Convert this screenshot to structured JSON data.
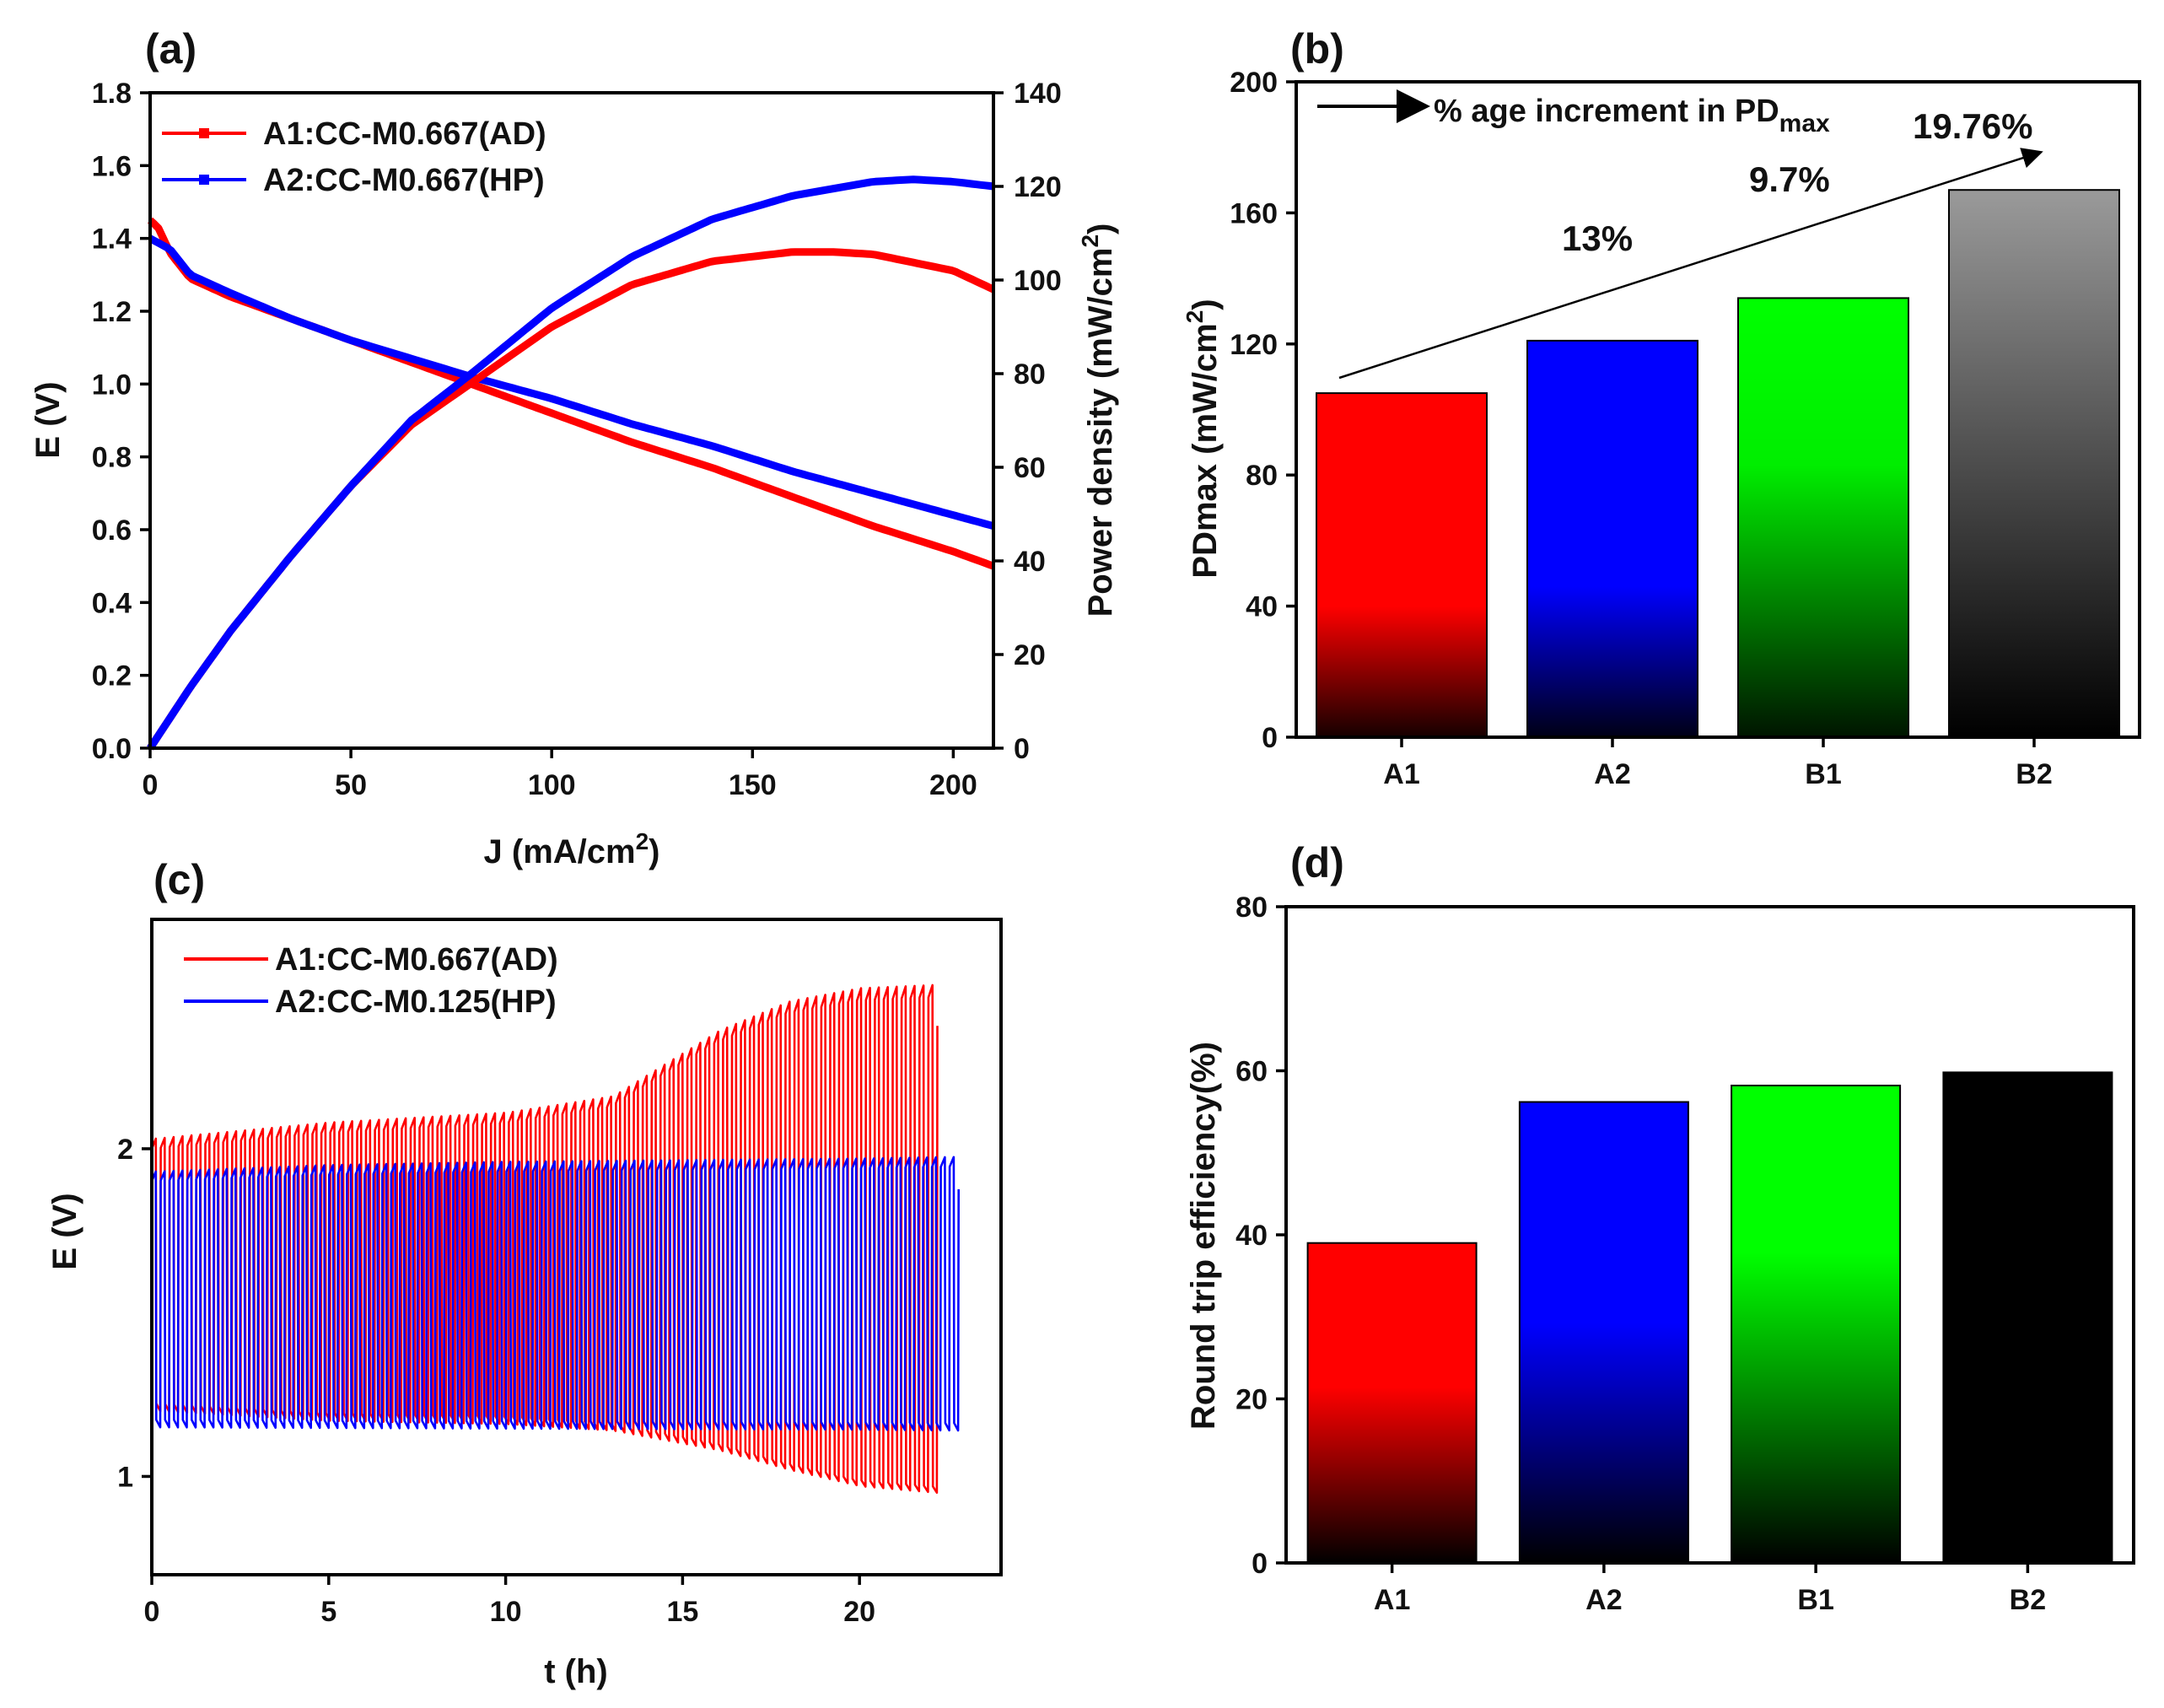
{
  "panels": {
    "a": {
      "label": "(a)"
    },
    "b": {
      "label": "(b)"
    },
    "c": {
      "label": "(c)"
    },
    "d": {
      "label": "(d)"
    }
  },
  "chart_data": [
    {
      "panel": "a",
      "type": "line",
      "xlabel": "J (mA/cm2)",
      "xlabel_main": "J (mA/cm",
      "xlabel_sup": "2",
      "xlabel_end": ")",
      "ylabel": "E (V)",
      "y2label": "Power density (mW/cm2)",
      "y2label_main": "Power density (mW/cm",
      "y2label_sup": "2",
      "y2label_end": ")",
      "xlim": [
        0,
        210
      ],
      "ylim": [
        0,
        1.8
      ],
      "y2lim": [
        0,
        140
      ],
      "xticks": [
        0,
        50,
        100,
        150,
        200
      ],
      "xtick_labels": [
        "0",
        "50",
        "100",
        "150",
        "200"
      ],
      "yticks": [
        0,
        0.2,
        0.4,
        0.6,
        0.8,
        1.0,
        1.2,
        1.4,
        1.6,
        1.8
      ],
      "ytick_labels": [
        "0.0",
        "0.2",
        "0.4",
        "0.6",
        "0.8",
        "1.0",
        "1.2",
        "1.4",
        "1.6",
        "1.8"
      ],
      "y2ticks": [
        0,
        20,
        40,
        60,
        80,
        100,
        120,
        140
      ],
      "y2tick_labels": [
        "0",
        "20",
        "40",
        "60",
        "80",
        "100",
        "120",
        "140"
      ],
      "legend": [
        "A1:CC-M0.667(AD)",
        "A2:CC-M0.667(HP)"
      ],
      "series": [
        {
          "name": "A1:CC-M0.667(AD)",
          "color": "#ff0000",
          "axis": "left",
          "x": [
            0,
            2,
            5,
            10,
            20,
            35,
            50,
            65,
            80,
            100,
            120,
            140,
            160,
            180,
            200,
            210
          ],
          "y": [
            1.45,
            1.43,
            1.36,
            1.29,
            1.24,
            1.18,
            1.12,
            1.06,
            1.0,
            0.92,
            0.84,
            0.77,
            0.69,
            0.61,
            0.54,
            0.5
          ]
        },
        {
          "name": "A2:CC-M0.667(HP)",
          "color": "#0000ff",
          "axis": "left",
          "x": [
            0,
            5,
            10,
            20,
            35,
            50,
            65,
            80,
            100,
            120,
            140,
            160,
            180,
            200,
            210
          ],
          "y": [
            1.4,
            1.37,
            1.3,
            1.25,
            1.18,
            1.12,
            1.07,
            1.02,
            0.96,
            0.89,
            0.83,
            0.76,
            0.7,
            0.64,
            0.61
          ]
        },
        {
          "name": "A1:CC-M0.667(AD) power",
          "color": "#ff0000",
          "axis": "right",
          "x": [
            0,
            10,
            20,
            35,
            50,
            65,
            80,
            100,
            120,
            140,
            160,
            170,
            180,
            200,
            210
          ],
          "y": [
            0,
            13,
            25,
            41,
            56,
            69,
            78,
            90,
            99,
            104,
            106,
            106,
            105.5,
            102,
            98
          ]
        },
        {
          "name": "A2:CC-M0.667(HP) power",
          "color": "#0000ff",
          "axis": "right",
          "x": [
            0,
            10,
            20,
            35,
            50,
            65,
            80,
            100,
            120,
            140,
            160,
            180,
            190,
            200,
            210
          ],
          "y": [
            0,
            13,
            25,
            41,
            56,
            70,
            80,
            94,
            105,
            113,
            118,
            121,
            121.5,
            121,
            120
          ]
        }
      ]
    },
    {
      "panel": "b",
      "type": "bar",
      "ylabel": "PDmax (mW/cm2)",
      "ylabel_main": "PDmax (mW/cm",
      "ylabel_sup": "2",
      "ylabel_end": ")",
      "ylim": [
        0,
        200
      ],
      "yticks": [
        0,
        40,
        80,
        120,
        160,
        200
      ],
      "ytick_labels": [
        "0",
        "40",
        "80",
        "120",
        "160",
        "200"
      ],
      "categories": [
        "A1",
        "A2",
        "B1",
        "B2"
      ],
      "values": [
        105,
        121,
        134,
        167
      ],
      "colors": [
        "#ff0000",
        "#0000ff",
        "#00ff00",
        "#8c8c8c"
      ],
      "annotations": {
        "legend_text": "% age increment in PD",
        "legend_sub": "max",
        "increments": [
          "13%",
          "9.7%",
          "19.76%"
        ]
      }
    },
    {
      "panel": "c",
      "type": "line",
      "xlabel": "t (h)",
      "ylabel": "E (V)",
      "xlim": [
        0,
        24
      ],
      "ylim": [
        0.7,
        2.7
      ],
      "xticks": [
        0,
        5,
        10,
        15,
        20
      ],
      "xtick_labels": [
        "0",
        "5",
        "10",
        "15",
        "20"
      ],
      "yticks": [
        1,
        2
      ],
      "ytick_labels": [
        "1",
        "2"
      ],
      "legend": [
        "A1:CC-M0.667(AD)",
        "A2:CC-M0.125(HP)"
      ],
      "series": [
        {
          "name": "A1:CC-M0.667(AD)",
          "color": "#ff0000",
          "cycles": 88,
          "t_end": 22.2,
          "charge_t": [
            0,
            5,
            10,
            13,
            16,
            18,
            20,
            22.2
          ],
          "charge_v": [
            2.03,
            2.08,
            2.11,
            2.16,
            2.36,
            2.45,
            2.49,
            2.5
          ],
          "discharge_t": [
            0,
            5,
            10,
            13,
            16,
            18,
            20,
            22.2
          ],
          "discharge_v": [
            1.2,
            1.17,
            1.16,
            1.14,
            1.08,
            1.02,
            0.97,
            0.95
          ]
        },
        {
          "name": "A2:CC-M0.125(HP)",
          "color": "#0000ff",
          "cycles": 91,
          "t_end": 22.8,
          "charge_t": [
            0,
            5,
            10,
            15,
            20,
            22.8
          ],
          "charge_v": [
            1.93,
            1.95,
            1.96,
            1.965,
            1.97,
            1.975
          ],
          "discharge_t": [
            0,
            5,
            10,
            15,
            20,
            22.8
          ],
          "discharge_v": [
            1.15,
            1.148,
            1.146,
            1.144,
            1.143,
            1.14
          ]
        }
      ]
    },
    {
      "panel": "d",
      "type": "bar",
      "ylabel": "Round trip efficiency(%)",
      "ylim": [
        0,
        80
      ],
      "yticks": [
        0,
        20,
        40,
        60,
        80
      ],
      "ytick_labels": [
        "0",
        "20",
        "40",
        "60",
        "80"
      ],
      "categories": [
        "A1",
        "A2",
        "B1",
        "B2"
      ],
      "values": [
        39,
        56.2,
        58.2,
        59.8
      ],
      "colors": [
        "#ff0000",
        "#0000ff",
        "#00ff00",
        "#000000"
      ]
    }
  ]
}
